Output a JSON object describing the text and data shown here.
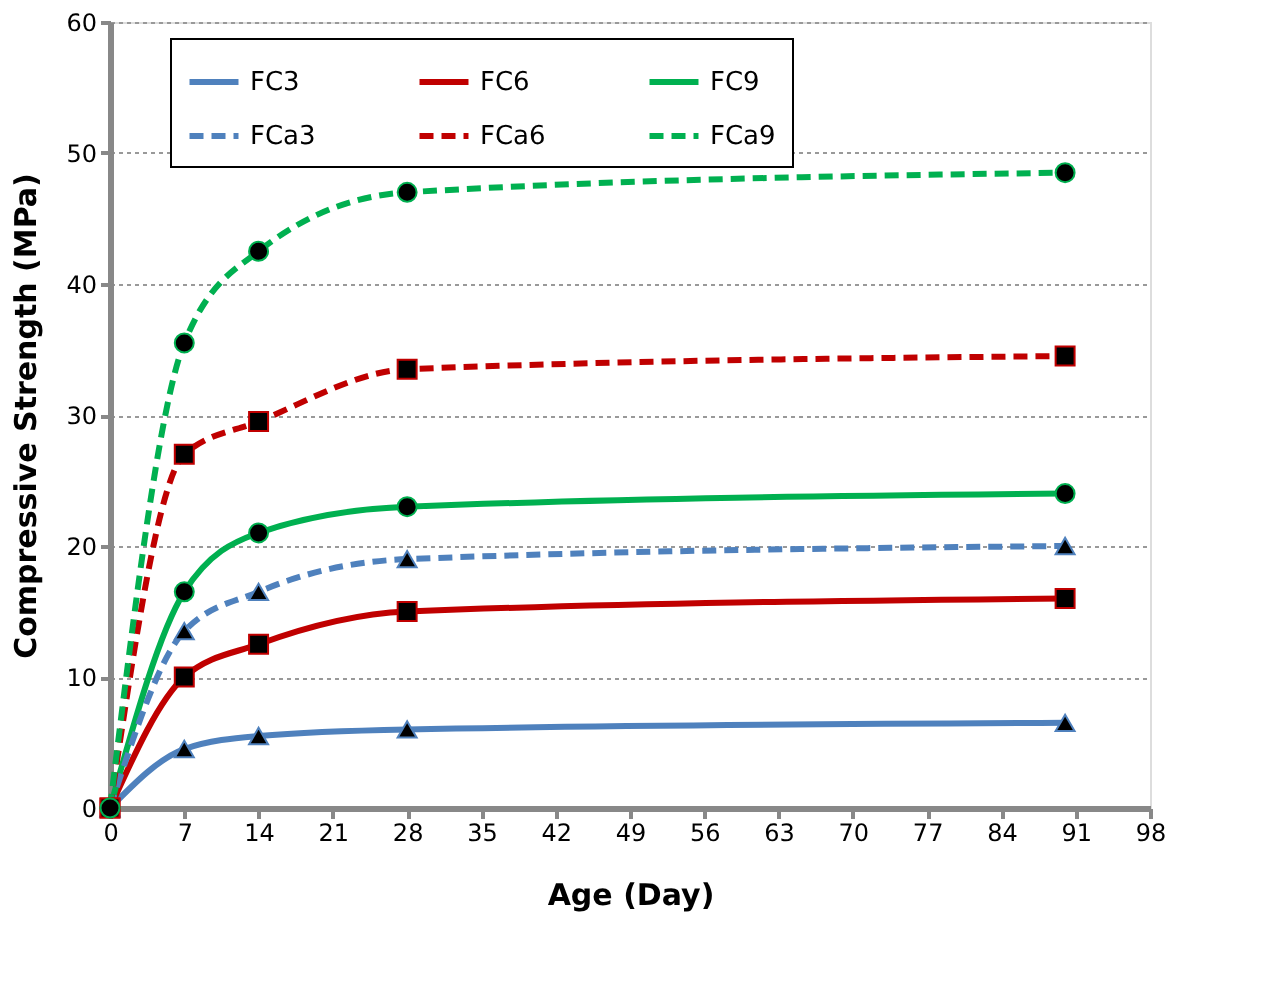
{
  "chart_data": {
    "type": "line",
    "xlabel": "Age (Day)",
    "ylabel": "Compressive Strength (MPa)",
    "x": [
      0,
      7,
      14,
      28,
      90
    ],
    "series": [
      {
        "name": "FC3",
        "color": "#4f81bd",
        "marker": "triangle",
        "line_style": "solid",
        "values": [
          0,
          4.5,
          5.5,
          6,
          6.5
        ]
      },
      {
        "name": "FC6",
        "color": "#c00000",
        "marker": "square",
        "line_style": "solid",
        "values": [
          0,
          10,
          12.5,
          15,
          16
        ]
      },
      {
        "name": "FC9",
        "color": "#00b050",
        "marker": "circle",
        "line_style": "solid",
        "values": [
          0,
          16.5,
          21,
          23,
          24
        ]
      },
      {
        "name": "FCa3",
        "color": "#4f81bd",
        "marker": "triangle",
        "line_style": "dashed",
        "values": [
          0,
          13.5,
          16.5,
          19,
          20
        ]
      },
      {
        "name": "FCa6",
        "color": "#c00000",
        "marker": "square",
        "line_style": "dashed",
        "values": [
          0,
          27,
          29.5,
          33.5,
          34.5
        ]
      },
      {
        "name": "FCa9",
        "color": "#00b050",
        "marker": "circle",
        "line_style": "dashed",
        "values": [
          0,
          35.5,
          42.5,
          47,
          48.5
        ]
      }
    ],
    "xlim": [
      0,
      98
    ],
    "xticks": [
      0,
      7,
      14,
      21,
      28,
      35,
      42,
      49,
      56,
      63,
      70,
      77,
      84,
      91,
      98
    ],
    "ylim": [
      0,
      60
    ],
    "yticks": [
      0,
      10,
      20,
      30,
      40,
      50,
      60
    ],
    "grid": "y",
    "legend": "top"
  }
}
